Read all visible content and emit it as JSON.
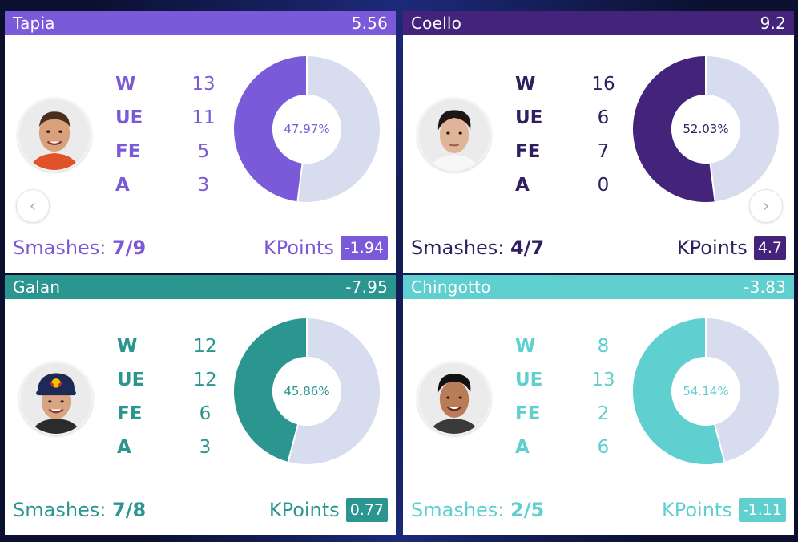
{
  "cards": [
    {
      "name": "Tapia",
      "rating": "5.56",
      "stats": [
        {
          "label": "W",
          "value": "13"
        },
        {
          "label": "UE",
          "value": "11"
        },
        {
          "label": "FE",
          "value": "5"
        },
        {
          "label": "A",
          "value": "3"
        }
      ],
      "percent_label": "47.97%",
      "percent": 47.97,
      "smashes_label": "Smashes:",
      "smashes_value": "7/9",
      "kpoints_label": "KPoints",
      "kpoints_value": "-1.94",
      "colors": {
        "header": "#7b5ad9",
        "accent": "#7b5ad9",
        "text": "#7b5ad9",
        "donut_rest": "#d8dcef"
      },
      "nav": {
        "icon": "chevron-left-icon",
        "glyph": "‹"
      }
    },
    {
      "name": "Coello",
      "rating": "9.2",
      "stats": [
        {
          "label": "W",
          "value": "16"
        },
        {
          "label": "UE",
          "value": "6"
        },
        {
          "label": "FE",
          "value": "7"
        },
        {
          "label": "A",
          "value": "0"
        }
      ],
      "percent_label": "52.03%",
      "percent": 52.03,
      "smashes_label": "Smashes:",
      "smashes_value": "4/7",
      "kpoints_label": "KPoints",
      "kpoints_value": "4.7",
      "colors": {
        "header": "#44247a",
        "accent": "#44247a",
        "text": "#2f1f5e",
        "donut_rest": "#d8dcef"
      },
      "nav": {
        "icon": "chevron-right-icon",
        "glyph": "›"
      }
    },
    {
      "name": "Galan",
      "rating": "-7.95",
      "stats": [
        {
          "label": "W",
          "value": "12"
        },
        {
          "label": "UE",
          "value": "12"
        },
        {
          "label": "FE",
          "value": "6"
        },
        {
          "label": "A",
          "value": "3"
        }
      ],
      "percent_label": "45.86%",
      "percent": 45.86,
      "smashes_label": "Smashes:",
      "smashes_value": "7/8",
      "kpoints_label": "KPoints",
      "kpoints_value": "0.77",
      "colors": {
        "header": "#2a968f",
        "accent": "#2a968f",
        "text": "#2a968f",
        "donut_rest": "#d8dcef"
      }
    },
    {
      "name": "Chingotto",
      "rating": "-3.83",
      "stats": [
        {
          "label": "W",
          "value": "8"
        },
        {
          "label": "UE",
          "value": "13"
        },
        {
          "label": "FE",
          "value": "2"
        },
        {
          "label": "A",
          "value": "6"
        }
      ],
      "percent_label": "54.14%",
      "percent": 54.14,
      "smashes_label": "Smashes:",
      "smashes_value": "2/5",
      "kpoints_label": "KPoints",
      "kpoints_value": "-1.11",
      "colors": {
        "header": "#5fcfcf",
        "accent": "#5fcfcf",
        "text": "#5fcfcf",
        "donut_rest": "#d8dcef"
      }
    }
  ]
}
